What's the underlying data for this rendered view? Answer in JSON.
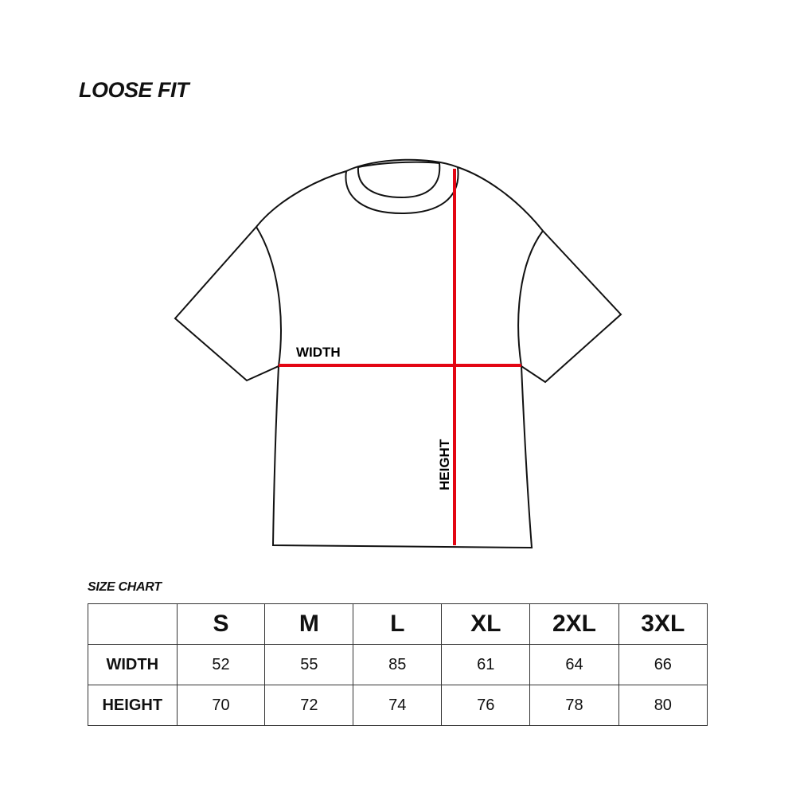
{
  "title": "LOOSE FIT",
  "diagram": {
    "width_label": "WIDTH",
    "height_label": "HEIGHT",
    "measure_color": "#e30613",
    "outline_color": "#111111"
  },
  "size_chart": {
    "title": "SIZE CHART",
    "sizes": [
      "S",
      "M",
      "L",
      "XL",
      "2XL",
      "3XL"
    ],
    "rows": [
      {
        "label": "WIDTH",
        "values": [
          "52",
          "55",
          "85",
          "61",
          "64",
          "66"
        ]
      },
      {
        "label": "HEIGHT",
        "values": [
          "70",
          "72",
          "74",
          "76",
          "78",
          "80"
        ]
      }
    ]
  }
}
